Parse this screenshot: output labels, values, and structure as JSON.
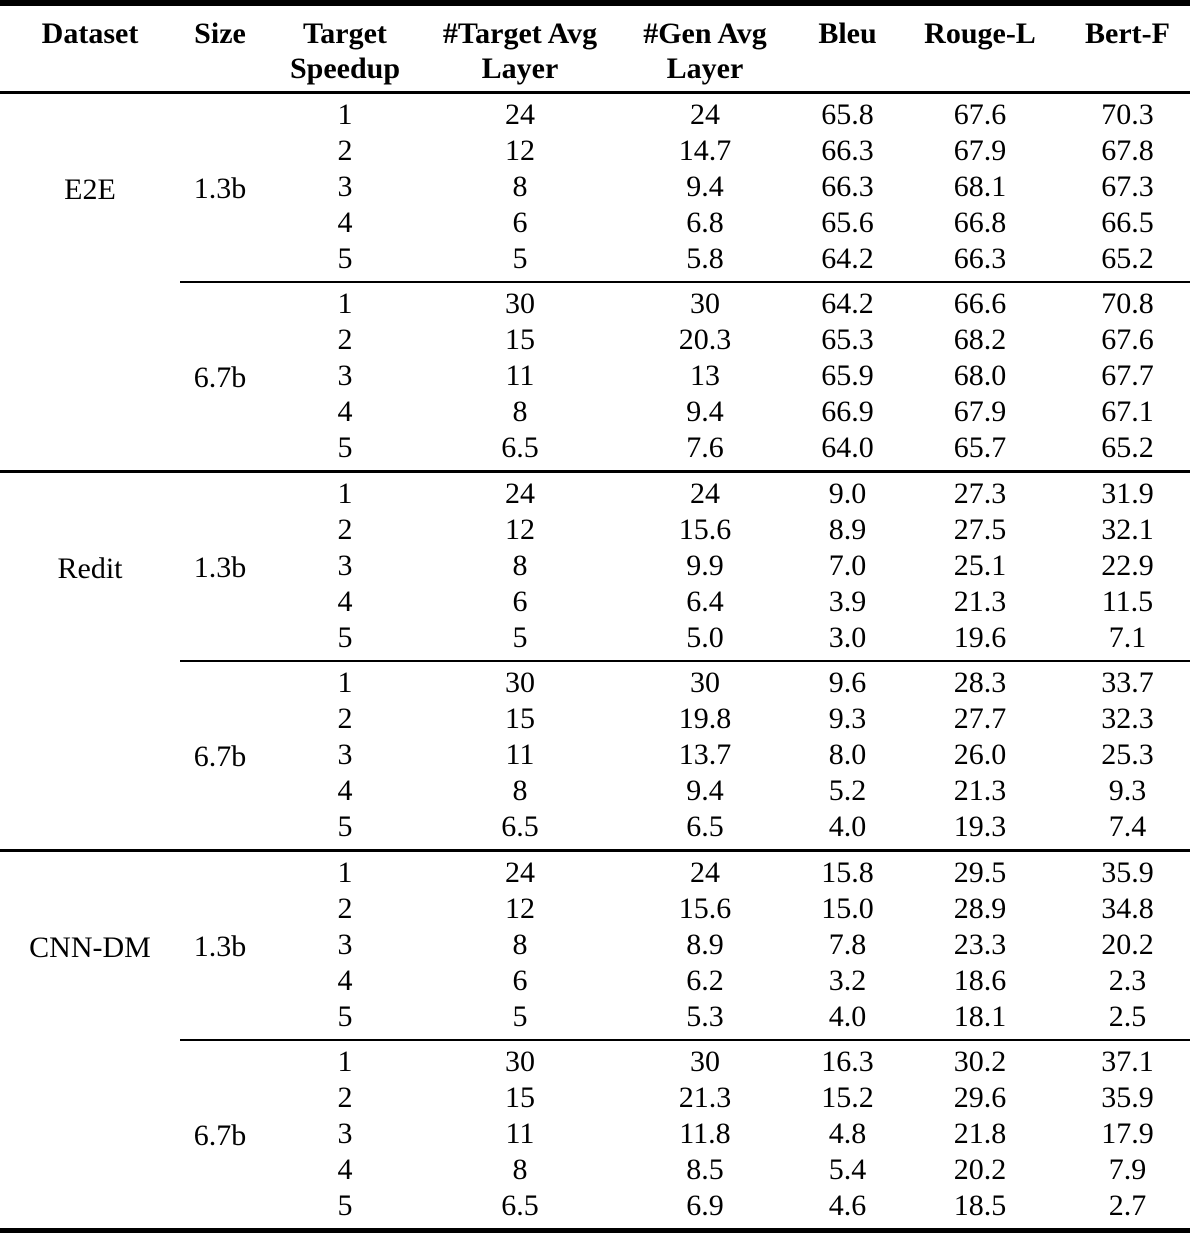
{
  "page": {
    "background": "#ffffff",
    "text_color": "#000000",
    "rule_color": "#000000"
  },
  "table": {
    "header": {
      "dataset": "Dataset",
      "size": "Size",
      "target_speedup": [
        "Target",
        "Speedup"
      ],
      "target_avg_layer": [
        "#Target Avg",
        "Layer"
      ],
      "gen_avg_layer": [
        "#Gen Avg",
        "Layer"
      ],
      "bleu": "Bleu",
      "rouge_l": "Rouge-L",
      "bert_f": "Bert-F"
    },
    "groups": [
      {
        "dataset": "E2E",
        "size": "1.3b",
        "rule_before": "none",
        "rows": [
          [
            "1",
            "24",
            "24",
            "65.8",
            "67.6",
            "70.3"
          ],
          [
            "2",
            "12",
            "14.7",
            "66.3",
            "67.9",
            "67.8"
          ],
          [
            "3",
            "8",
            "9.4",
            "66.3",
            "68.1",
            "67.3"
          ],
          [
            "4",
            "6",
            "6.8",
            "65.6",
            "66.8",
            "66.5"
          ],
          [
            "5",
            "5",
            "5.8",
            "64.2",
            "66.3",
            "65.2"
          ]
        ]
      },
      {
        "dataset": "",
        "size": "6.7b",
        "rule_before": "partial",
        "rows": [
          [
            "1",
            "30",
            "30",
            "64.2",
            "66.6",
            "70.8"
          ],
          [
            "2",
            "15",
            "20.3",
            "65.3",
            "68.2",
            "67.6"
          ],
          [
            "3",
            "11",
            "13",
            "65.9",
            "68.0",
            "67.7"
          ],
          [
            "4",
            "8",
            "9.4",
            "66.9",
            "67.9",
            "67.1"
          ],
          [
            "5",
            "6.5",
            "7.6",
            "64.0",
            "65.7",
            "65.2"
          ]
        ]
      },
      {
        "dataset": "Redit",
        "size": "1.3b",
        "rule_before": "full",
        "rows": [
          [
            "1",
            "24",
            "24",
            "9.0",
            "27.3",
            "31.9"
          ],
          [
            "2",
            "12",
            "15.6",
            "8.9",
            "27.5",
            "32.1"
          ],
          [
            "3",
            "8",
            "9.9",
            "7.0",
            "25.1",
            "22.9"
          ],
          [
            "4",
            "6",
            "6.4",
            "3.9",
            "21.3",
            "11.5"
          ],
          [
            "5",
            "5",
            "5.0",
            "3.0",
            "19.6",
            "7.1"
          ]
        ]
      },
      {
        "dataset": "",
        "size": "6.7b",
        "rule_before": "partial",
        "rows": [
          [
            "1",
            "30",
            "30",
            "9.6",
            "28.3",
            "33.7"
          ],
          [
            "2",
            "15",
            "19.8",
            "9.3",
            "27.7",
            "32.3"
          ],
          [
            "3",
            "11",
            "13.7",
            "8.0",
            "26.0",
            "25.3"
          ],
          [
            "4",
            "8",
            "9.4",
            "5.2",
            "21.3",
            "9.3"
          ],
          [
            "5",
            "6.5",
            "6.5",
            "4.0",
            "19.3",
            "7.4"
          ]
        ]
      },
      {
        "dataset": "CNN-DM",
        "size": "1.3b",
        "rule_before": "full",
        "rows": [
          [
            "1",
            "24",
            "24",
            "15.8",
            "29.5",
            "35.9"
          ],
          [
            "2",
            "12",
            "15.6",
            "15.0",
            "28.9",
            "34.8"
          ],
          [
            "3",
            "8",
            "8.9",
            "7.8",
            "23.3",
            "20.2"
          ],
          [
            "4",
            "6",
            "6.2",
            "3.2",
            "18.6",
            "2.3"
          ],
          [
            "5",
            "5",
            "5.3",
            "4.0",
            "18.1",
            "2.5"
          ]
        ]
      },
      {
        "dataset": "",
        "size": "6.7b",
        "rule_before": "partial",
        "rows": [
          [
            "1",
            "30",
            "30",
            "16.3",
            "30.2",
            "37.1"
          ],
          [
            "2",
            "15",
            "21.3",
            "15.2",
            "29.6",
            "35.9"
          ],
          [
            "3",
            "11",
            "11.8",
            "4.8",
            "21.8",
            "17.9"
          ],
          [
            "4",
            "8",
            "8.5",
            "5.4",
            "20.2",
            "7.9"
          ],
          [
            "5",
            "6.5",
            "6.9",
            "4.6",
            "18.5",
            "2.7"
          ]
        ]
      }
    ]
  }
}
